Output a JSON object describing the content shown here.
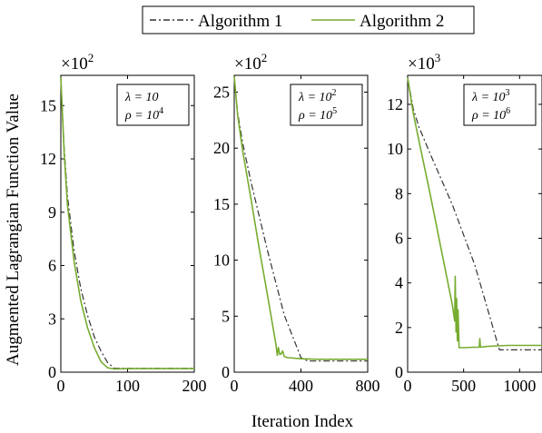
{
  "ylabel": "Augmented Lagrangian Function Value",
  "xlabel": "Iteration Index",
  "legend": {
    "placement": "top-center",
    "entries": [
      {
        "name": "Algorithm 1",
        "color": "#333333",
        "style": "dash-dot"
      },
      {
        "name": "Algorithm 2",
        "color": "#77ac30",
        "style": "solid"
      }
    ]
  },
  "chart_data": [
    {
      "type": "line",
      "multiplier_base": "×10",
      "multiplier_exp": "2",
      "params": [
        {
          "sym": "λ = 10",
          "sup": ""
        },
        {
          "sym": "ρ = 10",
          "sup": "4"
        }
      ],
      "xlim": [
        0,
        200
      ],
      "ylim": [
        0,
        16.7
      ],
      "xticks": [
        0,
        100,
        200
      ],
      "yticks": [
        0,
        3,
        6,
        9,
        12,
        15
      ],
      "grid": false,
      "series": [
        {
          "name": "Algorithm 1",
          "x": [
            0,
            5,
            10,
            20,
            30,
            40,
            50,
            60,
            70,
            80,
            100,
            150,
            200
          ],
          "y": [
            16.6,
            12.6,
            9.9,
            6.8,
            4.7,
            3.2,
            2.0,
            1.2,
            0.55,
            0.22,
            0.22,
            0.22,
            0.22
          ]
        },
        {
          "name": "Algorithm 2",
          "x": [
            0,
            5,
            10,
            20,
            30,
            40,
            50,
            60,
            70,
            80,
            100,
            150,
            200
          ],
          "y": [
            16.6,
            12.3,
            9.4,
            6.2,
            4.0,
            2.5,
            1.4,
            0.6,
            0.25,
            0.18,
            0.2,
            0.2,
            0.2
          ]
        }
      ]
    },
    {
      "type": "line",
      "multiplier_base": "×10",
      "multiplier_exp": "2",
      "params": [
        {
          "sym": "λ = 10",
          "sup": "2"
        },
        {
          "sym": "ρ = 10",
          "sup": "5"
        }
      ],
      "xlim": [
        0,
        800
      ],
      "ylim": [
        0,
        26.5
      ],
      "xticks": [
        0,
        400,
        800
      ],
      "yticks": [
        0,
        5,
        10,
        15,
        20,
        25
      ],
      "grid": false,
      "series": [
        {
          "name": "Algorithm 1",
          "x": [
            0,
            20,
            50,
            100,
            200,
            300,
            400,
            440,
            500,
            600,
            700,
            800
          ],
          "y": [
            26.4,
            23.2,
            20.5,
            17.0,
            10.8,
            5.1,
            1.3,
            1.0,
            1.0,
            1.0,
            1.0,
            1.0
          ]
        },
        {
          "name": "Algorithm 2",
          "x": [
            0,
            20,
            50,
            100,
            150,
            200,
            250,
            258,
            265,
            272,
            280,
            290,
            300,
            320,
            400,
            500,
            600,
            700,
            800
          ],
          "y": [
            26.4,
            23.0,
            19.8,
            15.5,
            11.0,
            6.8,
            2.5,
            1.5,
            2.2,
            1.6,
            1.6,
            1.9,
            1.4,
            1.3,
            1.2,
            1.15,
            1.15,
            1.15,
            1.15
          ]
        }
      ]
    },
    {
      "type": "line",
      "multiplier_base": "×10",
      "multiplier_exp": "3",
      "params": [
        {
          "sym": "λ = 10",
          "sup": "3"
        },
        {
          "sym": "ρ = 10",
          "sup": "6"
        }
      ],
      "xlim": [
        0,
        1200
      ],
      "ylim": [
        0,
        13.3
      ],
      "xticks": [
        0,
        500,
        1000
      ],
      "yticks": [
        0,
        2,
        4,
        6,
        8,
        10,
        12
      ],
      "grid": false,
      "series": [
        {
          "name": "Algorithm 1",
          "x": [
            0,
            50,
            100,
            200,
            400,
            600,
            820,
            900,
            1000,
            1100,
            1200
          ],
          "y": [
            13.2,
            11.8,
            11.0,
            9.8,
            7.5,
            4.8,
            1.0,
            1.0,
            1.0,
            1.0,
            1.0
          ]
        },
        {
          "name": "Algorithm 2",
          "x": [
            0,
            50,
            100,
            200,
            300,
            400,
            420,
            425,
            432,
            438,
            444,
            450,
            460,
            480,
            500,
            600,
            640,
            645,
            650,
            700,
            800,
            900,
            1000,
            1100,
            1200
          ],
          "y": [
            13.2,
            11.6,
            10.4,
            8.0,
            5.5,
            3.0,
            2.3,
            4.3,
            1.8,
            3.3,
            1.4,
            2.8,
            1.1,
            1.1,
            1.1,
            1.12,
            1.12,
            1.5,
            1.12,
            1.15,
            1.18,
            1.2,
            1.2,
            1.2,
            1.2
          ]
        }
      ]
    }
  ]
}
